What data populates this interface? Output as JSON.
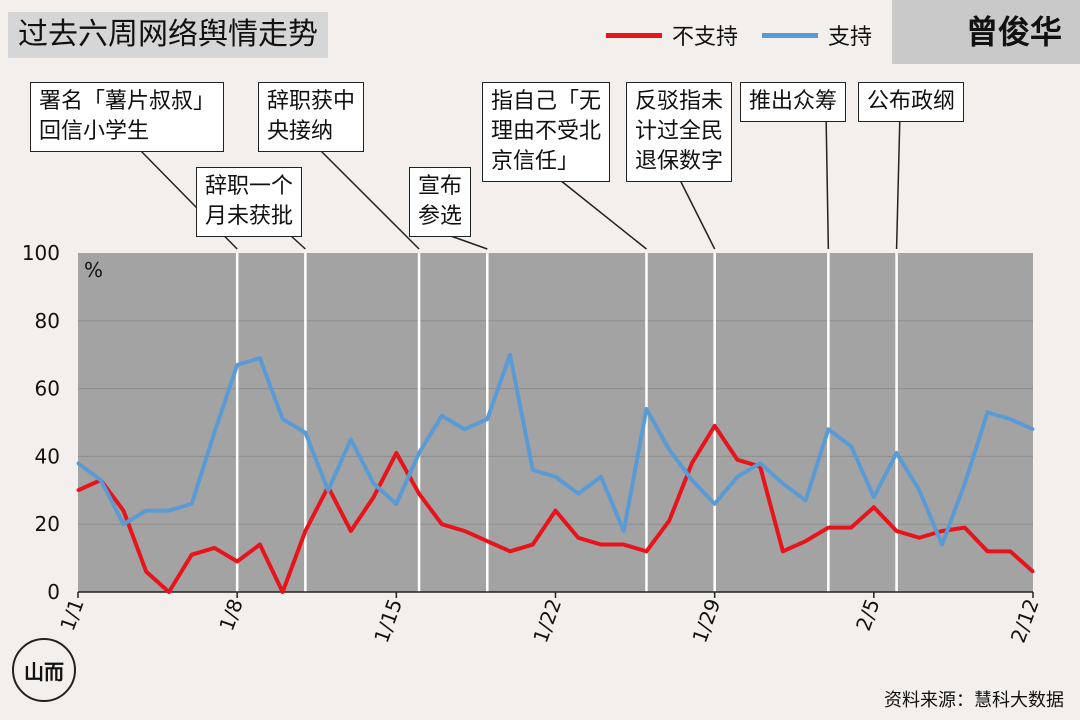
{
  "title": "过去六周网络舆情走势",
  "person_name": "曾俊华",
  "source": "资料来源：慧科大数据",
  "logo_text": "山而",
  "legend": [
    {
      "label": "不支持",
      "color": "#e8141c"
    },
    {
      "label": "支持",
      "color": "#5b9bd5"
    }
  ],
  "annotations": [
    {
      "text": "署名「薯片叔叔」\n回信小学生",
      "day": 7
    },
    {
      "text": "辞职一个\n月未获批",
      "day": 10
    },
    {
      "text": "辞职获中\n央接纳",
      "day": 15
    },
    {
      "text": "宣布\n参选",
      "day": 18
    },
    {
      "text": "指自己「无\n理由不受北\n京信任」",
      "day": 25
    },
    {
      "text": "反驳指未\n计过全民\n退保数字",
      "day": 28
    },
    {
      "text": "推出众筹",
      "day": 33
    },
    {
      "text": "公布政纲",
      "day": 36
    }
  ],
  "chart_data": {
    "type": "line",
    "unit": "%",
    "ylim": [
      0,
      100
    ],
    "yticks": [
      0,
      20,
      40,
      60,
      80,
      100
    ],
    "x_ticks": [
      {
        "label": "1/1",
        "day": 0
      },
      {
        "label": "1/8",
        "day": 7
      },
      {
        "label": "1/15",
        "day": 14
      },
      {
        "label": "1/22",
        "day": 21
      },
      {
        "label": "1/29",
        "day": 28
      },
      {
        "label": "2/5",
        "day": 35
      },
      {
        "label": "2/12",
        "day": 42
      }
    ],
    "series": [
      {
        "name": "不支持",
        "color": "#e8141c",
        "values": [
          30,
          33,
          24,
          6,
          0,
          11,
          13,
          9,
          14,
          0,
          18,
          31,
          18,
          28,
          41,
          29,
          20,
          18,
          15,
          12,
          14,
          24,
          16,
          14,
          14,
          12,
          21,
          38,
          49,
          39,
          37,
          12,
          15,
          19,
          19,
          25,
          18,
          16,
          18,
          19,
          12,
          12,
          6
        ]
      },
      {
        "name": "支持",
        "color": "#5b9bd5",
        "values": [
          38,
          33,
          20,
          24,
          24,
          26,
          47,
          67,
          69,
          51,
          47,
          30,
          45,
          32,
          26,
          41,
          52,
          48,
          51,
          70,
          36,
          34,
          29,
          34,
          18,
          54,
          42,
          33,
          26,
          34,
          38,
          32,
          27,
          48,
          43,
          28,
          41,
          30,
          14,
          32,
          53,
          51,
          48
        ]
      }
    ]
  }
}
